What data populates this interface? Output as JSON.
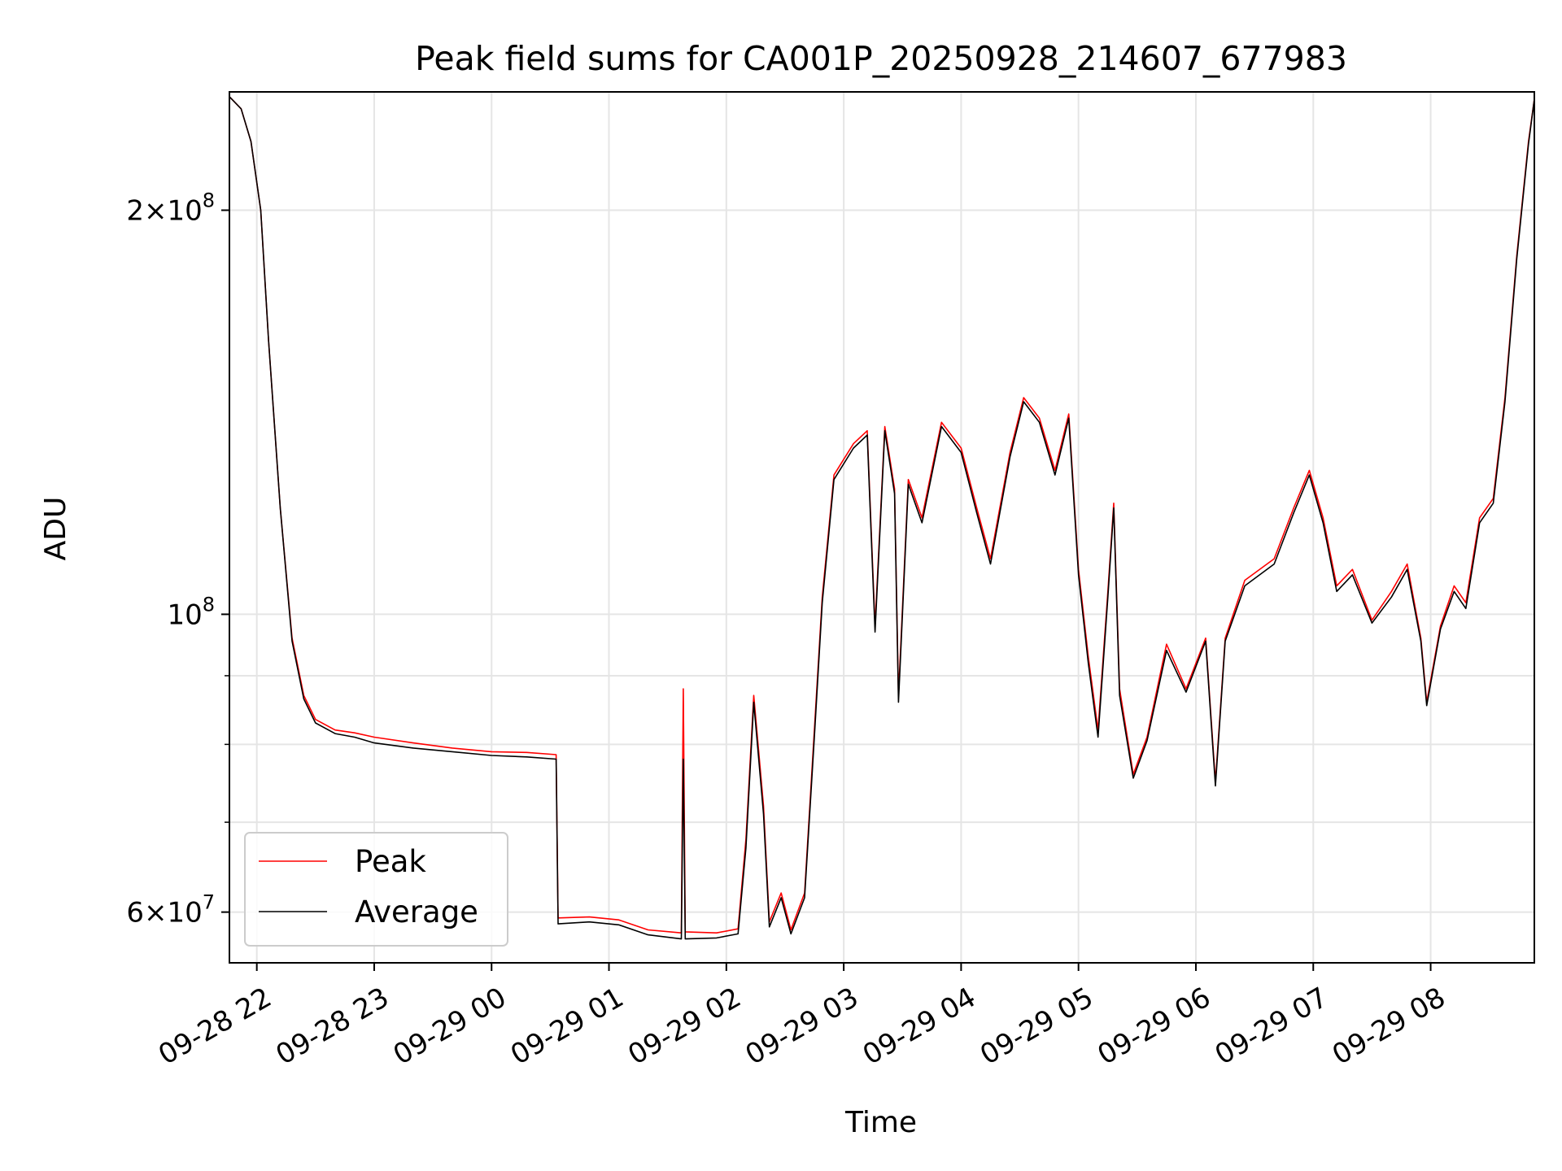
{
  "chart_data": {
    "type": "line",
    "title": "Peak field sums for CA001P_20250928_214607_677983",
    "xlabel": "Time",
    "ylabel": "ADU",
    "yscale": "log",
    "ylim": [
      55000000,
      245000000
    ],
    "xlim": [
      "2025-09-28 21:46",
      "2025-09-29 08:53"
    ],
    "grid": true,
    "legend_position": "lower-left",
    "x_ticks": [
      {
        "time": "2025-09-28 22:00",
        "label": "09-28 22"
      },
      {
        "time": "2025-09-28 23:00",
        "label": "09-28 23"
      },
      {
        "time": "2025-09-29 00:00",
        "label": "09-29 00"
      },
      {
        "time": "2025-09-29 01:00",
        "label": "09-29 01"
      },
      {
        "time": "2025-09-29 02:00",
        "label": "09-29 02"
      },
      {
        "time": "2025-09-29 03:00",
        "label": "09-29 03"
      },
      {
        "time": "2025-09-29 04:00",
        "label": "09-29 04"
      },
      {
        "time": "2025-09-29 05:00",
        "label": "09-29 05"
      },
      {
        "time": "2025-09-29 06:00",
        "label": "09-29 06"
      },
      {
        "time": "2025-09-29 07:00",
        "label": "09-29 07"
      },
      {
        "time": "2025-09-29 08:00",
        "label": "09-29 08"
      }
    ],
    "y_major_ticks": [
      {
        "value": 60000000,
        "mantissa": "6",
        "exponent": "7"
      },
      {
        "value": 100000000,
        "mantissa": "",
        "exponent": "8"
      },
      {
        "value": 200000000,
        "mantissa": "2",
        "exponent": "8"
      }
    ],
    "y_minor_ticks": [
      70000000,
      80000000,
      90000000
    ],
    "series": [
      {
        "name": "Peak",
        "color": "#ff0000",
        "points": [
          [
            "2025-09-28 21:46",
            243000000
          ],
          [
            "2025-09-28 21:52",
            238000000
          ],
          [
            "2025-09-28 21:57",
            225000000
          ],
          [
            "2025-09-28 22:02",
            200000000
          ],
          [
            "2025-09-28 22:06",
            160000000
          ],
          [
            "2025-09-28 22:12",
            120000000
          ],
          [
            "2025-09-28 22:18",
            96000000
          ],
          [
            "2025-09-28 22:24",
            87000000
          ],
          [
            "2025-09-28 22:30",
            83500000
          ],
          [
            "2025-09-28 22:40",
            82000000
          ],
          [
            "2025-09-28 22:50",
            81600000
          ],
          [
            "2025-09-28 23:00",
            81000000
          ],
          [
            "2025-09-28 23:20",
            80200000
          ],
          [
            "2025-09-28 23:40",
            79500000
          ],
          [
            "2025-09-29 00:00",
            79000000
          ],
          [
            "2025-09-29 00:18",
            78900000
          ],
          [
            "2025-09-29 00:33",
            78600000
          ],
          [
            "2025-09-29 00:34",
            59400000
          ],
          [
            "2025-09-29 00:50",
            59500000
          ],
          [
            "2025-09-29 01:05",
            59200000
          ],
          [
            "2025-09-29 01:20",
            58200000
          ],
          [
            "2025-09-29 01:37",
            57900000
          ],
          [
            "2025-09-29 01:38",
            88000000
          ],
          [
            "2025-09-29 01:39",
            58000000
          ],
          [
            "2025-09-29 01:55",
            57900000
          ],
          [
            "2025-09-29 02:06",
            58300000
          ],
          [
            "2025-09-29 02:10",
            68000000
          ],
          [
            "2025-09-29 02:14",
            87000000
          ],
          [
            "2025-09-29 02:19",
            72000000
          ],
          [
            "2025-09-29 02:22",
            59000000
          ],
          [
            "2025-09-29 02:28",
            62000000
          ],
          [
            "2025-09-29 02:33",
            58200000
          ],
          [
            "2025-09-29 02:40",
            62000000
          ],
          [
            "2025-09-29 02:45",
            82000000
          ],
          [
            "2025-09-29 02:49",
            103000000
          ],
          [
            "2025-09-29 02:55",
            127000000
          ],
          [
            "2025-09-29 03:05",
            134000000
          ],
          [
            "2025-09-29 03:12",
            137000000
          ],
          [
            "2025-09-29 03:16",
            98000000
          ],
          [
            "2025-09-29 03:21",
            138000000
          ],
          [
            "2025-09-29 03:26",
            124000000
          ],
          [
            "2025-09-29 03:28",
            87000000
          ],
          [
            "2025-09-29 03:33",
            126000000
          ],
          [
            "2025-09-29 03:40",
            118000000
          ],
          [
            "2025-09-29 03:50",
            139000000
          ],
          [
            "2025-09-29 04:00",
            133000000
          ],
          [
            "2025-09-29 04:08",
            120000000
          ],
          [
            "2025-09-29 04:15",
            110000000
          ],
          [
            "2025-09-29 04:25",
            132000000
          ],
          [
            "2025-09-29 04:32",
            145000000
          ],
          [
            "2025-09-29 04:40",
            140000000
          ],
          [
            "2025-09-29 04:48",
            128000000
          ],
          [
            "2025-09-29 04:55",
            141000000
          ],
          [
            "2025-09-29 05:00",
            108000000
          ],
          [
            "2025-09-29 05:05",
            93000000
          ],
          [
            "2025-09-29 05:10",
            82000000
          ],
          [
            "2025-09-29 05:15",
            104000000
          ],
          [
            "2025-09-29 05:18",
            121000000
          ],
          [
            "2025-09-29 05:21",
            88000000
          ],
          [
            "2025-09-29 05:28",
            76000000
          ],
          [
            "2025-09-29 05:35",
            81000000
          ],
          [
            "2025-09-29 05:45",
            95000000
          ],
          [
            "2025-09-29 05:55",
            88000000
          ],
          [
            "2025-09-29 06:05",
            96000000
          ],
          [
            "2025-09-29 06:10",
            75000000
          ],
          [
            "2025-09-29 06:15",
            96000000
          ],
          [
            "2025-09-29 06:25",
            106000000
          ],
          [
            "2025-09-29 06:40",
            110000000
          ],
          [
            "2025-09-29 06:50",
            120000000
          ],
          [
            "2025-09-29 06:58",
            128000000
          ],
          [
            "2025-09-29 07:05",
            118000000
          ],
          [
            "2025-09-29 07:12",
            105000000
          ],
          [
            "2025-09-29 07:20",
            108000000
          ],
          [
            "2025-09-29 07:30",
            99000000
          ],
          [
            "2025-09-29 07:40",
            104000000
          ],
          [
            "2025-09-29 07:48",
            109000000
          ],
          [
            "2025-09-29 07:55",
            96000000
          ],
          [
            "2025-09-29 07:58",
            86000000
          ],
          [
            "2025-09-29 08:05",
            98000000
          ],
          [
            "2025-09-29 08:12",
            105000000
          ],
          [
            "2025-09-29 08:18",
            102000000
          ],
          [
            "2025-09-29 08:25",
            118000000
          ],
          [
            "2025-09-29 08:32",
            122000000
          ],
          [
            "2025-09-29 08:38",
            145000000
          ],
          [
            "2025-09-29 08:44",
            185000000
          ],
          [
            "2025-09-29 08:50",
            225000000
          ],
          [
            "2025-09-29 08:53",
            242000000
          ]
        ]
      },
      {
        "name": "Average",
        "color": "#000000",
        "points": [
          [
            "2025-09-28 21:46",
            243000000
          ],
          [
            "2025-09-28 21:52",
            238000000
          ],
          [
            "2025-09-28 21:57",
            225000000
          ],
          [
            "2025-09-28 22:02",
            200000000
          ],
          [
            "2025-09-28 22:06",
            160000000
          ],
          [
            "2025-09-28 22:12",
            120000000
          ],
          [
            "2025-09-28 22:18",
            95500000
          ],
          [
            "2025-09-28 22:24",
            86500000
          ],
          [
            "2025-09-28 22:30",
            83000000
          ],
          [
            "2025-09-28 22:40",
            81500000
          ],
          [
            "2025-09-28 22:50",
            81000000
          ],
          [
            "2025-09-28 23:00",
            80200000
          ],
          [
            "2025-09-28 23:20",
            79500000
          ],
          [
            "2025-09-28 23:40",
            79000000
          ],
          [
            "2025-09-29 00:00",
            78500000
          ],
          [
            "2025-09-29 00:18",
            78300000
          ],
          [
            "2025-09-29 00:33",
            78000000
          ],
          [
            "2025-09-29 00:34",
            58800000
          ],
          [
            "2025-09-29 00:50",
            59000000
          ],
          [
            "2025-09-29 01:05",
            58700000
          ],
          [
            "2025-09-29 01:20",
            57700000
          ],
          [
            "2025-09-29 01:37",
            57300000
          ],
          [
            "2025-09-29 01:38",
            78000000
          ],
          [
            "2025-09-29 01:39",
            57300000
          ],
          [
            "2025-09-29 01:55",
            57400000
          ],
          [
            "2025-09-29 02:06",
            57800000
          ],
          [
            "2025-09-29 02:10",
            67000000
          ],
          [
            "2025-09-29 02:14",
            86000000
          ],
          [
            "2025-09-29 02:19",
            71000000
          ],
          [
            "2025-09-29 02:22",
            58500000
          ],
          [
            "2025-09-29 02:28",
            61500000
          ],
          [
            "2025-09-29 02:33",
            57800000
          ],
          [
            "2025-09-29 02:40",
            61500000
          ],
          [
            "2025-09-29 02:45",
            81000000
          ],
          [
            "2025-09-29 02:49",
            102000000
          ],
          [
            "2025-09-29 02:55",
            126000000
          ],
          [
            "2025-09-29 03:05",
            133000000
          ],
          [
            "2025-09-29 03:12",
            136000000
          ],
          [
            "2025-09-29 03:16",
            97000000
          ],
          [
            "2025-09-29 03:21",
            137000000
          ],
          [
            "2025-09-29 03:26",
            123000000
          ],
          [
            "2025-09-29 03:28",
            86000000
          ],
          [
            "2025-09-29 03:33",
            125000000
          ],
          [
            "2025-09-29 03:40",
            117000000
          ],
          [
            "2025-09-29 03:50",
            138000000
          ],
          [
            "2025-09-29 04:00",
            132000000
          ],
          [
            "2025-09-29 04:08",
            119000000
          ],
          [
            "2025-09-29 04:15",
            109000000
          ],
          [
            "2025-09-29 04:25",
            131000000
          ],
          [
            "2025-09-29 04:32",
            144000000
          ],
          [
            "2025-09-29 04:40",
            139000000
          ],
          [
            "2025-09-29 04:48",
            127000000
          ],
          [
            "2025-09-29 04:55",
            140000000
          ],
          [
            "2025-09-29 05:00",
            107000000
          ],
          [
            "2025-09-29 05:05",
            92000000
          ],
          [
            "2025-09-29 05:10",
            81000000
          ],
          [
            "2025-09-29 05:15",
            103000000
          ],
          [
            "2025-09-29 05:18",
            120000000
          ],
          [
            "2025-09-29 05:21",
            87000000
          ],
          [
            "2025-09-29 05:28",
            75500000
          ],
          [
            "2025-09-29 05:35",
            80500000
          ],
          [
            "2025-09-29 05:45",
            94000000
          ],
          [
            "2025-09-29 05:55",
            87500000
          ],
          [
            "2025-09-29 06:05",
            95500000
          ],
          [
            "2025-09-29 06:10",
            74500000
          ],
          [
            "2025-09-29 06:15",
            95500000
          ],
          [
            "2025-09-29 06:25",
            105000000
          ],
          [
            "2025-09-29 06:40",
            109000000
          ],
          [
            "2025-09-29 06:50",
            119000000
          ],
          [
            "2025-09-29 06:58",
            127000000
          ],
          [
            "2025-09-29 07:05",
            117000000
          ],
          [
            "2025-09-29 07:12",
            104000000
          ],
          [
            "2025-09-29 07:20",
            107000000
          ],
          [
            "2025-09-29 07:30",
            98500000
          ],
          [
            "2025-09-29 07:40",
            103000000
          ],
          [
            "2025-09-29 07:48",
            108000000
          ],
          [
            "2025-09-29 07:55",
            95500000
          ],
          [
            "2025-09-29 07:58",
            85500000
          ],
          [
            "2025-09-29 08:05",
            97500000
          ],
          [
            "2025-09-29 08:12",
            104000000
          ],
          [
            "2025-09-29 08:18",
            101000000
          ],
          [
            "2025-09-29 08:25",
            117000000
          ],
          [
            "2025-09-29 08:32",
            121000000
          ],
          [
            "2025-09-29 08:38",
            144000000
          ],
          [
            "2025-09-29 08:44",
            184000000
          ],
          [
            "2025-09-29 08:50",
            224000000
          ],
          [
            "2025-09-29 08:53",
            242000000
          ]
        ]
      }
    ]
  }
}
